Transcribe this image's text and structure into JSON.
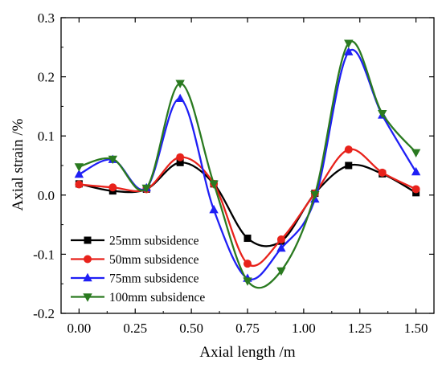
{
  "chart_data": {
    "type": "line",
    "title": "",
    "xlabel": "Axial length /m",
    "ylabel": "Axial strain /%",
    "xlim": [
      -0.08,
      1.58
    ],
    "ylim": [
      -0.2,
      0.3
    ],
    "xticks": [
      "0.00",
      "0.25",
      "0.50",
      "0.75",
      "1.00",
      "1.25",
      "1.50"
    ],
    "xtick_values": [
      0,
      0.25,
      0.5,
      0.75,
      1.0,
      1.25,
      1.5
    ],
    "yticks": [
      "-0.2",
      "-0.1",
      "0.0",
      "0.1",
      "0.2",
      "0.3"
    ],
    "ytick_values": [
      -0.2,
      -0.1,
      0.0,
      0.1,
      0.2,
      0.3
    ],
    "grid": false,
    "legend_position": "bottom-left",
    "x": [
      0.0,
      0.15,
      0.3,
      0.45,
      0.6,
      0.75,
      0.9,
      1.05,
      1.2,
      1.35,
      1.5
    ],
    "series": [
      {
        "name": "25mm subsidence",
        "color": "#000000",
        "marker": "square",
        "values": [
          0.019,
          0.007,
          0.01,
          0.055,
          0.019,
          -0.073,
          -0.078,
          0.003,
          0.05,
          0.036,
          0.004
        ]
      },
      {
        "name": "50mm subsidence",
        "color": "#e8221b",
        "marker": "circle",
        "values": [
          0.018,
          0.013,
          0.01,
          0.064,
          0.019,
          -0.116,
          -0.075,
          0.003,
          0.077,
          0.038,
          0.01
        ]
      },
      {
        "name": "75mm subsidence",
        "color": "#1f1ff5",
        "marker": "triangle-up",
        "values": [
          0.035,
          0.06,
          0.012,
          0.163,
          -0.025,
          -0.141,
          -0.09,
          -0.007,
          0.242,
          0.135,
          0.039
        ]
      },
      {
        "name": "100mm subsidence",
        "color": "#2a7a20",
        "marker": "triangle-down",
        "values": [
          0.048,
          0.061,
          0.012,
          0.189,
          0.019,
          -0.145,
          -0.128,
          0.001,
          0.257,
          0.138,
          0.072
        ]
      }
    ]
  }
}
